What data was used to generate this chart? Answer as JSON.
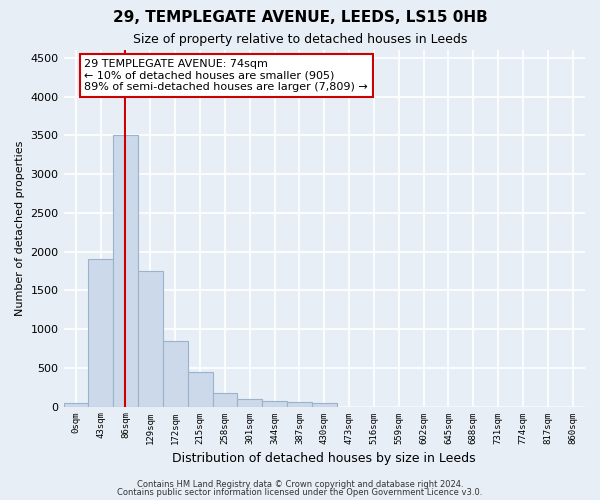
{
  "title": "29, TEMPLEGATE AVENUE, LEEDS, LS15 0HB",
  "subtitle": "Size of property relative to detached houses in Leeds",
  "xlabel": "Distribution of detached houses by size in Leeds",
  "ylabel": "Number of detached properties",
  "annotation_line1": "29 TEMPLEGATE AVENUE: 74sqm",
  "annotation_line2": "← 10% of detached houses are smaller (905)",
  "annotation_line3": "89% of semi-detached houses are larger (7,809) →",
  "footer_line1": "Contains HM Land Registry data © Crown copyright and database right 2024.",
  "footer_line2": "Contains public sector information licensed under the Open Government Licence v3.0.",
  "bar_categories": [
    "0sqm",
    "43sqm",
    "86sqm",
    "129sqm",
    "172sqm",
    "215sqm",
    "258sqm",
    "301sqm",
    "344sqm",
    "387sqm",
    "430sqm",
    "473sqm",
    "516sqm",
    "559sqm",
    "602sqm",
    "645sqm",
    "688sqm",
    "731sqm",
    "774sqm",
    "817sqm",
    "860sqm"
  ],
  "bar_values": [
    50,
    1900,
    3500,
    1750,
    850,
    440,
    175,
    100,
    75,
    55,
    50,
    0,
    0,
    0,
    0,
    0,
    0,
    0,
    0,
    0,
    0
  ],
  "bar_color": "#ccd9ea",
  "bar_edgecolor": "#9ab3cc",
  "property_line_color": "#cc0000",
  "property_line_index": 1.97,
  "ylim": [
    0,
    4600
  ],
  "yticks": [
    0,
    500,
    1000,
    1500,
    2000,
    2500,
    3000,
    3500,
    4000,
    4500
  ],
  "bg_color": "#e8eef5",
  "grid_color": "#ffffff",
  "title_fontsize": 11,
  "subtitle_fontsize": 9
}
